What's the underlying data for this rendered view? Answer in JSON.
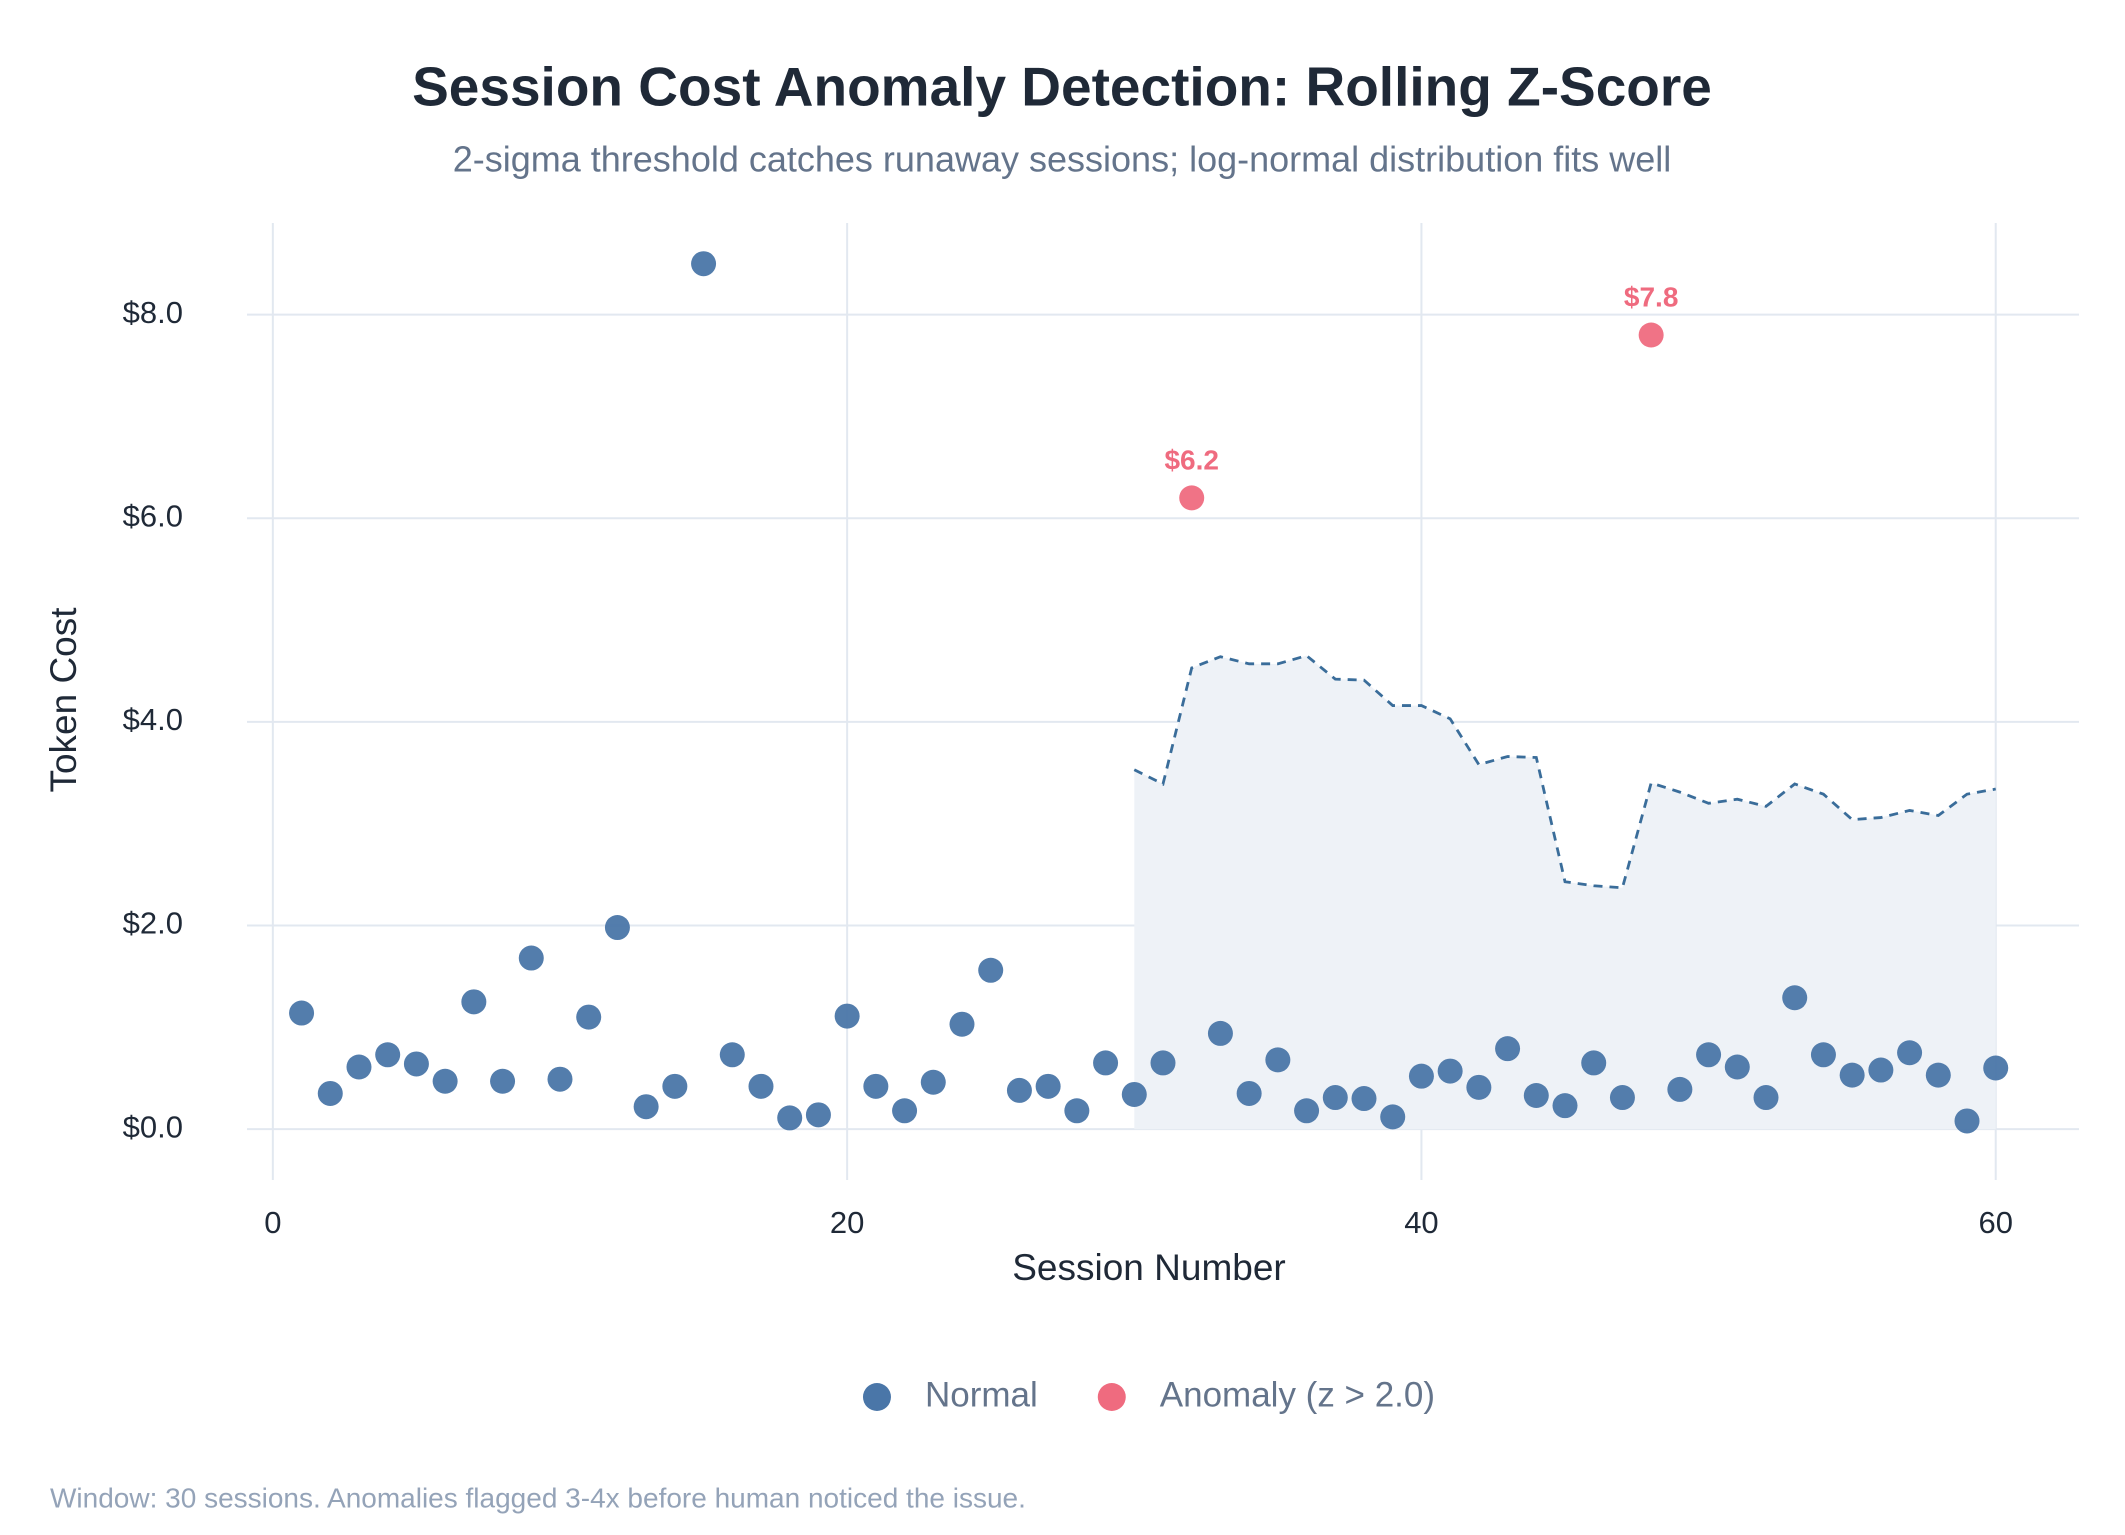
{
  "chart_data": {
    "type": "scatter",
    "title": "Session Cost Anomaly Detection: Rolling Z-Score",
    "subtitle": "2-sigma threshold catches runaway sessions; log-normal distribution fits well",
    "x_label": "Session Number",
    "y_label": "Token Cost",
    "footnote": "Window: 30 sessions. Anomalies flagged 3-4x before human noticed the issue.",
    "xlim": [
      -0.9,
      62.9
    ],
    "ylim": [
      -0.5,
      8.9
    ],
    "xticks": [
      0,
      20,
      40,
      60
    ],
    "yticks": [
      {
        "value": 0,
        "label": "$0.0"
      },
      {
        "value": 2,
        "label": "$2.0"
      },
      {
        "value": 4,
        "label": "$4.0"
      },
      {
        "value": 6,
        "label": "$6.0"
      },
      {
        "value": 8,
        "label": "$8.0"
      }
    ],
    "grid": true,
    "legend": "bottom",
    "series": [
      {
        "name": "Normal",
        "color": "#4a76a8",
        "x": [
          1,
          2,
          3,
          4,
          5,
          6,
          7,
          8,
          9,
          10,
          11,
          12,
          13,
          14,
          15,
          16,
          17,
          18,
          19,
          20,
          21,
          22,
          23,
          24,
          25,
          26,
          27,
          28,
          29,
          30,
          31,
          33,
          34,
          35,
          36,
          37,
          38,
          39,
          40,
          41,
          42,
          43,
          44,
          45,
          46,
          47,
          49,
          50,
          51,
          52,
          53,
          54,
          55,
          56,
          57,
          58,
          59,
          60
        ],
        "values": [
          1.14,
          0.35,
          0.61,
          0.73,
          0.64,
          0.47,
          1.25,
          0.47,
          1.68,
          0.49,
          1.1,
          1.98,
          0.22,
          0.42,
          8.5,
          0.73,
          0.42,
          0.11,
          0.14,
          1.11,
          0.42,
          0.18,
          0.46,
          1.03,
          1.56,
          0.38,
          0.42,
          0.18,
          0.65,
          0.34,
          0.65,
          0.94,
          0.35,
          0.68,
          0.18,
          0.31,
          0.3,
          0.12,
          0.52,
          0.57,
          0.41,
          0.79,
          0.33,
          0.23,
          0.65,
          0.31,
          0.39,
          0.73,
          0.61,
          0.31,
          1.29,
          0.73,
          0.53,
          0.58,
          0.75,
          0.53,
          0.08,
          0.6
        ]
      },
      {
        "name": "Anomaly (z > 2.0)",
        "color": "#ef6b7f",
        "x": [
          32,
          48
        ],
        "values": [
          6.2,
          7.8
        ],
        "value_labels": [
          "$6.2",
          "$7.8"
        ]
      }
    ],
    "threshold": {
      "color": "#3a6d9a",
      "fill": "#eef2f7",
      "x": [
        30,
        31,
        32,
        33,
        34,
        35,
        36,
        37,
        38,
        39,
        40,
        41,
        42,
        43,
        44,
        45,
        46,
        47,
        48,
        49,
        50,
        51,
        52,
        53,
        54,
        55,
        56,
        57,
        58,
        59,
        60
      ],
      "values": [
        3.53,
        3.39,
        4.53,
        4.64,
        4.57,
        4.57,
        4.65,
        4.42,
        4.41,
        4.16,
        4.16,
        4.03,
        3.58,
        3.66,
        3.65,
        2.43,
        2.39,
        2.37,
        3.4,
        3.31,
        3.2,
        3.24,
        3.17,
        3.39,
        3.29,
        3.04,
        3.06,
        3.13,
        3.08,
        3.29,
        3.34
      ]
    }
  }
}
